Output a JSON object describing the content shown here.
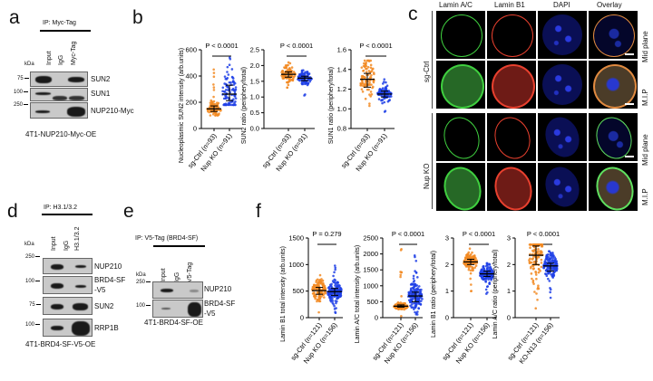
{
  "panel_letters": {
    "a": "a",
    "b": "b",
    "c": "c",
    "d": "d",
    "e": "e",
    "f": "f"
  },
  "panel_a": {
    "ip_label": "IP: Myc-Tag",
    "kda": "kDa",
    "lanes": [
      "Input",
      "IgG",
      "Myc-Tag"
    ],
    "markers": [
      "75",
      "100",
      "250"
    ],
    "bands": [
      "SUN2",
      "SUN1",
      "NUP210-Myc"
    ],
    "caption": "4T1-NUP210-Myc-OE"
  },
  "panel_c": {
    "columns": [
      "Lamin A/C",
      "Lamin B1",
      "DAPI",
      "Overlay"
    ],
    "column_colors": [
      "#3aa53a",
      "#e0302a",
      "#2a2ae0",
      "#222222"
    ],
    "rows": [
      "Mid plane",
      "M.I.P",
      "Mid plane",
      "M.I.P"
    ],
    "groups": [
      "sg-Ctrl",
      "Nup KO"
    ]
  },
  "panel_d": {
    "ip_label": "IP: H3.1/3.2",
    "kda": "kDa",
    "lanes": [
      "Input",
      "IgG",
      "H3.1/3.2"
    ],
    "markers": [
      "250",
      "100",
      "75",
      "100"
    ],
    "bands": [
      "NUP210",
      "BRD4-SF\n-V5",
      "SUN2",
      "RRP1B"
    ],
    "caption": "4T1-BRD4-SF-V5-OE"
  },
  "panel_e": {
    "ip_label": "IP: V5-Tag (BRD4-SF)",
    "kda": "kDa",
    "lanes": [
      "Input",
      "IgG",
      "V5-Tag"
    ],
    "markers": [
      "250",
      "100"
    ],
    "bands": [
      "NUP210",
      "BRD4-SF\n-V5"
    ],
    "caption": "4T1-BRD4-SF-OE"
  },
  "colors": {
    "ctrl": "#f28a22",
    "ko": "#1f3fe6"
  },
  "chart_data": [
    {
      "panel": "b",
      "type": "scatter",
      "ylabel": "Nucleoplasmic SUN2 intensity (arb.units)",
      "ylim": [
        0,
        600
      ],
      "ticks": [
        "0",
        "200",
        "400",
        "600"
      ],
      "tick_values": [
        0,
        200,
        400,
        600
      ],
      "p_label": "P < 0.0001",
      "groups": [
        {
          "label": "sg-Ctrl (n=93)",
          "n": 93,
          "median": 150,
          "q1": 130,
          "q3": 172,
          "min": 100,
          "max": 450
        },
        {
          "label": "Nup KO (n=91)",
          "n": 91,
          "median": 262,
          "q1": 212,
          "q3": 330,
          "min": 180,
          "max": 540
        }
      ]
    },
    {
      "panel": "b",
      "type": "scatter",
      "ylabel": "SUN2 ratio (periphery/total)",
      "ylim": [
        0,
        2.5
      ],
      "ticks": [
        "0.0",
        "0.5",
        "1.0",
        "1.5",
        "2.0",
        "2.5"
      ],
      "tick_values": [
        0,
        0.5,
        1,
        1.5,
        2,
        2.5
      ],
      "p_label": "P < 0.0001",
      "groups": [
        {
          "label": "sg-Ctrl (n=93)",
          "n": 93,
          "median": 1.72,
          "q1": 1.63,
          "q3": 1.8,
          "min": 1.3,
          "max": 2.1
        },
        {
          "label": "Nup KO (n=91)",
          "n": 91,
          "median": 1.6,
          "q1": 1.52,
          "q3": 1.66,
          "min": 1.05,
          "max": 1.85
        }
      ]
    },
    {
      "panel": "b",
      "type": "scatter",
      "ylabel": "SUN1 ratio (periphery/total)",
      "ylim": [
        0.8,
        1.6
      ],
      "ticks": [
        "0.8",
        "1.0",
        "1.2",
        "1.4",
        "1.6"
      ],
      "tick_values": [
        0.8,
        1.0,
        1.2,
        1.4,
        1.6
      ],
      "p_label": "P < 0.0001",
      "groups": [
        {
          "label": "sg-Ctrl (n=93)",
          "n": 93,
          "median": 1.3,
          "q1": 1.22,
          "q3": 1.36,
          "min": 1.03,
          "max": 1.49
        },
        {
          "label": "Nup KO (n=91)",
          "n": 91,
          "median": 1.15,
          "q1": 1.12,
          "q3": 1.18,
          "min": 0.97,
          "max": 1.3
        }
      ]
    },
    {
      "panel": "f",
      "type": "scatter",
      "ylabel": "Lamin B1 total intensity (arb.units)",
      "ylim": [
        0,
        1500
      ],
      "ticks": [
        "0",
        "500",
        "1000",
        "1500"
      ],
      "tick_values": [
        0,
        500,
        1000,
        1500
      ],
      "p_label": "P = 0.279",
      "groups": [
        {
          "label": "sg-Ctrl (n=121)",
          "n": 121,
          "median": 510,
          "q1": 440,
          "q3": 570,
          "min": 100,
          "max": 800
        },
        {
          "label": "Nup KO (n=156)",
          "n": 156,
          "median": 490,
          "q1": 420,
          "q3": 550,
          "min": 90,
          "max": 980
        }
      ]
    },
    {
      "panel": "f",
      "type": "scatter",
      "ylabel": "Lamin A/C total intensity (arb.units)",
      "ylim": [
        0,
        2500
      ],
      "ticks": [
        "0",
        "500",
        "1000",
        "1500",
        "2000",
        "2500"
      ],
      "tick_values": [
        0,
        500,
        1000,
        1500,
        2000,
        2500
      ],
      "p_label": "P < 0.0001",
      "groups": [
        {
          "label": "sg-Ctrl (n=121)",
          "n": 121,
          "median": 360,
          "q1": 330,
          "q3": 400,
          "min": 50,
          "max": 2150
        },
        {
          "label": "Nup KO (n=156)",
          "n": 156,
          "median": 680,
          "q1": 500,
          "q3": 800,
          "min": 100,
          "max": 1950
        }
      ]
    },
    {
      "panel": "f",
      "type": "scatter",
      "ylabel": "Lamin B1 ratio (periphery/total)",
      "ylim": [
        0,
        3
      ],
      "ticks": [
        "0",
        "1",
        "2",
        "3"
      ],
      "tick_values": [
        0,
        1,
        2,
        3
      ],
      "p_label": "P < 0.0001",
      "groups": [
        {
          "label": "sg-Ctrl (n=121)",
          "n": 121,
          "median": 2.1,
          "q1": 2.0,
          "q3": 2.2,
          "min": 1.0,
          "max": 2.6
        },
        {
          "label": "Nup KO (n=156)",
          "n": 156,
          "median": 1.65,
          "q1": 1.55,
          "q3": 1.75,
          "min": 0.9,
          "max": 2.05
        }
      ]
    },
    {
      "panel": "f",
      "type": "scatter",
      "ylabel": "Lamin A/C ratio (periphery/total)",
      "ylim": [
        0,
        3
      ],
      "ticks": [
        "0",
        "1",
        "2",
        "3"
      ],
      "tick_values": [
        0,
        1,
        2,
        3
      ],
      "p_label": "P < 0.0001",
      "groups": [
        {
          "label": "sg-Ctrl (n=121)",
          "n": 121,
          "median": 2.35,
          "q1": 2.0,
          "q3": 2.7,
          "min": 0.35,
          "max": 2.75
        },
        {
          "label": "KO-N13 (n=156)",
          "n": 156,
          "median": 1.95,
          "q1": 1.75,
          "q3": 2.05,
          "min": 0.75,
          "max": 2.5
        }
      ]
    }
  ]
}
